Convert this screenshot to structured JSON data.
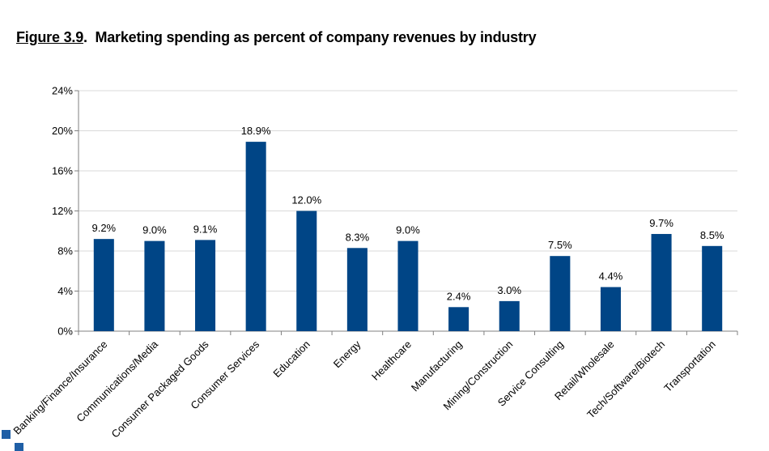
{
  "figure": {
    "number": "Figure 3.9",
    "title": "Marketing spending as percent of company revenues by industry"
  },
  "colors": {
    "bar": "#004586",
    "grid": "#d9d9d9",
    "axis": "#808080",
    "legend_marker": "#1f5fa6"
  },
  "chart_data": {
    "type": "bar",
    "title": "Marketing spending as percent of company revenues by industry",
    "xlabel": "",
    "ylabel": "",
    "ylim": [
      0,
      24
    ],
    "yticks": [
      "0%",
      "4%",
      "8%",
      "12%",
      "16%",
      "20%",
      "24%"
    ],
    "grid": true,
    "categories": [
      "Banking/Finance/Insurance",
      "Communications/Media",
      "Consumer Packaged Goods",
      "Consumer Services",
      "Education",
      "Energy",
      "Healthcare",
      "Manufacturing",
      "Mining/Construction",
      "Service Consulting",
      "Retail/Wholesale",
      "Tech/Software/Biotech",
      "Transportation"
    ],
    "values": [
      9.2,
      9.0,
      9.1,
      18.9,
      12.0,
      8.3,
      9.0,
      2.4,
      3.0,
      7.5,
      4.4,
      9.7,
      8.5
    ],
    "data_labels": [
      "9.2%",
      "9.0%",
      "9.1%",
      "18.9%",
      "12.0%",
      "8.3%",
      "9.0%",
      "2.4%",
      "3.0%",
      "7.5%",
      "4.4%",
      "9.7%",
      "8.5%"
    ]
  }
}
